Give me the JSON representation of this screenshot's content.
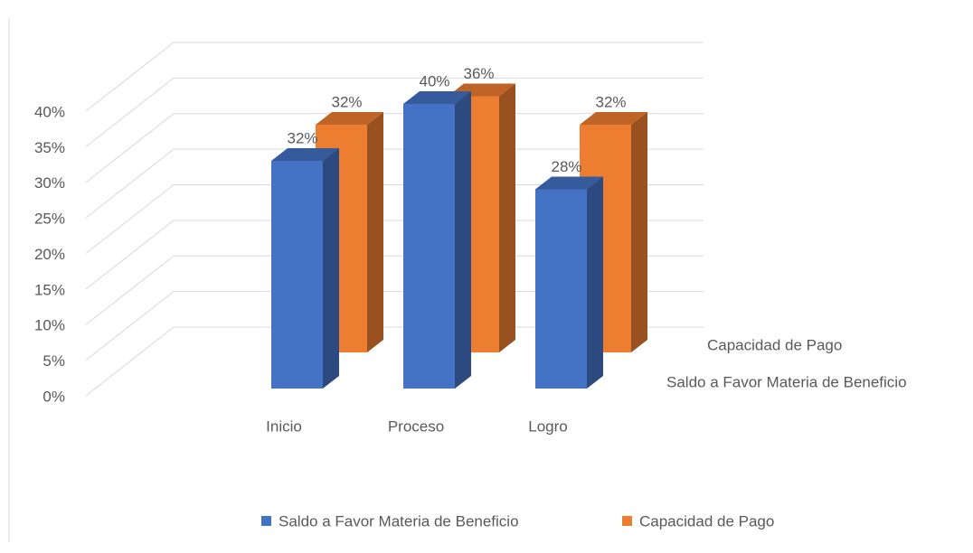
{
  "chart_data": {
    "type": "bar3d",
    "categories": [
      "Inicio",
      "Proceso",
      "Logro"
    ],
    "series": [
      {
        "name": "Saldo a Favor Materia de Beneficio",
        "color": "#4472c4",
        "values": [
          32,
          40,
          28
        ],
        "value_labels": [
          "32%",
          "40%",
          "28%"
        ]
      },
      {
        "name": "Capacidad de Pago",
        "color": "#ed7d31",
        "values": [
          32,
          36,
          32
        ],
        "value_labels": [
          "32%",
          "36%",
          "32%"
        ]
      }
    ],
    "ylim": [
      0,
      40
    ],
    "yticks": [
      {
        "value": 0,
        "label": "0%"
      },
      {
        "value": 5,
        "label": "5%"
      },
      {
        "value": 10,
        "label": "10%"
      },
      {
        "value": 15,
        "label": "15%"
      },
      {
        "value": 20,
        "label": "20%"
      },
      {
        "value": 25,
        "label": "25%"
      },
      {
        "value": 30,
        "label": "30%"
      },
      {
        "value": 35,
        "label": "35%"
      },
      {
        "value": 40,
        "label": "40%"
      }
    ],
    "grid": true,
    "legend": "bottom"
  }
}
